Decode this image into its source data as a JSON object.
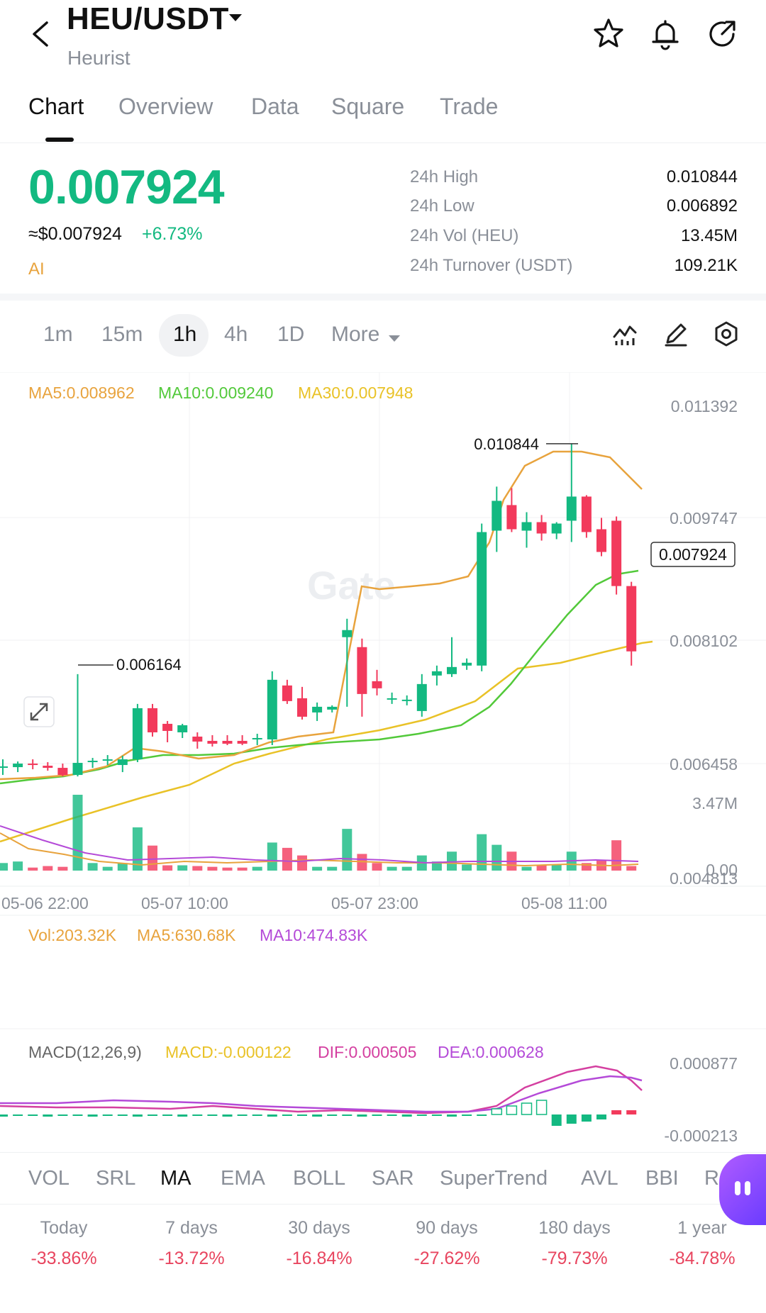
{
  "header": {
    "pair": "HEU/USDT",
    "name": "Heurist"
  },
  "tabs": [
    "Chart",
    "Overview",
    "Data",
    "Square",
    "Trade"
  ],
  "price": {
    "last": "0.007924",
    "usd": "≈$0.007924",
    "change": "+6.73%",
    "ai": "AI"
  },
  "stats": [
    {
      "label": "24h  High",
      "value": "0.010844"
    },
    {
      "label": "24h  Low",
      "value": "0.006892"
    },
    {
      "label": "24h  Vol (HEU)",
      "value": "13.45M"
    },
    {
      "label": "24h  Turnover (USDT)",
      "value": "109.21K"
    }
  ],
  "intervals": [
    "1m",
    "15m",
    "1h",
    "4h",
    "1D",
    "More"
  ],
  "ma_legend": {
    "ma5": "MA5:0.008962",
    "ma10": "MA10:0.009240",
    "ma30": "MA30:0.007948"
  },
  "vol_legend": {
    "vol": "Vol:203.32K",
    "ma5": "MA5:630.68K",
    "ma10": "MA10:474.83K"
  },
  "macd_legend": {
    "name": "MACD(12,26,9)",
    "macd": "MACD:-0.000122",
    "dif": "DIF:0.000505",
    "dea": "DEA:0.000628"
  },
  "indicators": [
    "VOL",
    "SRL",
    "MA",
    "EMA",
    "BOLL",
    "SAR",
    "SuperTrend",
    "AVL",
    "BBI",
    "Ra"
  ],
  "performance": [
    {
      "label": "Today",
      "value": "-33.86%"
    },
    {
      "label": "7 days",
      "value": "-13.72%"
    },
    {
      "label": "30 days",
      "value": "-16.84%"
    },
    {
      "label": "90 days",
      "value": "-27.62%"
    },
    {
      "label": "180 days",
      "value": "-79.73%"
    },
    {
      "label": "1 year",
      "value": "-84.78%"
    }
  ],
  "colors": {
    "up": "#13b981",
    "down": "#f23a5c",
    "ma5": "#e8a33d",
    "ma10": "#52c93a",
    "ma30": "#e9c227",
    "dif": "#d43fa0",
    "dea": "#b44ad8"
  },
  "watermark": "Gate",
  "chart_data": {
    "type": "candlestick",
    "price_axis_labels": [
      "0.011392",
      "0.009747",
      "0.008102",
      "0.006458",
      "0.004813"
    ],
    "time_axis_labels": [
      "05-06 22:00",
      "05-07 10:00",
      "05-07 23:00",
      "05-08 11:00"
    ],
    "high_marker": "0.010844",
    "low_marker": "0.006164",
    "last_marker": "0.007924",
    "volume_axis_labels": [
      "3.47M",
      "0.00"
    ],
    "macd_axis_labels": [
      "0.000877",
      "-0.000213"
    ],
    "candles": [
      {
        "o": 0.00628,
        "h": 0.0064,
        "l": 0.00618,
        "c": 0.0063
      },
      {
        "o": 0.00629,
        "h": 0.00637,
        "l": 0.00622,
        "c": 0.00634
      },
      {
        "o": 0.00634,
        "h": 0.0064,
        "l": 0.00626,
        "c": 0.00632
      },
      {
        "o": 0.00631,
        "h": 0.00636,
        "l": 0.00624,
        "c": 0.00628
      },
      {
        "o": 0.00628,
        "h": 0.00634,
        "l": 0.00616,
        "c": 0.00618
      },
      {
        "o": 0.00618,
        "h": 0.0076,
        "l": 0.00616,
        "c": 0.00635
      },
      {
        "o": 0.00636,
        "h": 0.00642,
        "l": 0.00628,
        "c": 0.00638
      },
      {
        "o": 0.00638,
        "h": 0.00646,
        "l": 0.00632,
        "c": 0.0064
      },
      {
        "o": 0.00632,
        "h": 0.00645,
        "l": 0.00622,
        "c": 0.0064
      },
      {
        "o": 0.0064,
        "h": 0.00718,
        "l": 0.00636,
        "c": 0.00712
      },
      {
        "o": 0.00712,
        "h": 0.00718,
        "l": 0.00672,
        "c": 0.00678
      },
      {
        "o": 0.0069,
        "h": 0.00694,
        "l": 0.00664,
        "c": 0.0068
      },
      {
        "o": 0.00678,
        "h": 0.0069,
        "l": 0.0067,
        "c": 0.00688
      },
      {
        "o": 0.00672,
        "h": 0.00678,
        "l": 0.00655,
        "c": 0.00665
      },
      {
        "o": 0.00666,
        "h": 0.00674,
        "l": 0.00658,
        "c": 0.00662
      },
      {
        "o": 0.00666,
        "h": 0.00674,
        "l": 0.0066,
        "c": 0.00662
      },
      {
        "o": 0.00666,
        "h": 0.00674,
        "l": 0.0066,
        "c": 0.00662
      },
      {
        "o": 0.00668,
        "h": 0.00676,
        "l": 0.0066,
        "c": 0.0067
      },
      {
        "o": 0.00668,
        "h": 0.00764,
        "l": 0.0066,
        "c": 0.00752
      },
      {
        "o": 0.00744,
        "h": 0.00752,
        "l": 0.00718,
        "c": 0.00722
      },
      {
        "o": 0.00726,
        "h": 0.00742,
        "l": 0.00696,
        "c": 0.007
      },
      {
        "o": 0.00706,
        "h": 0.0072,
        "l": 0.00694,
        "c": 0.00714
      },
      {
        "o": 0.0071,
        "h": 0.00716,
        "l": 0.00706,
        "c": 0.00714
      },
      {
        "o": 0.00812,
        "h": 0.00838,
        "l": 0.00714,
        "c": 0.00822
      },
      {
        "o": 0.00798,
        "h": 0.0081,
        "l": 0.007,
        "c": 0.00732
      },
      {
        "o": 0.0075,
        "h": 0.00766,
        "l": 0.0073,
        "c": 0.0074
      },
      {
        "o": 0.00725,
        "h": 0.00734,
        "l": 0.00718,
        "c": 0.00726
      },
      {
        "o": 0.00722,
        "h": 0.0073,
        "l": 0.00716,
        "c": 0.00724
      },
      {
        "o": 0.00708,
        "h": 0.0076,
        "l": 0.007,
        "c": 0.00746
      },
      {
        "o": 0.00758,
        "h": 0.00772,
        "l": 0.00744,
        "c": 0.00764
      },
      {
        "o": 0.0076,
        "h": 0.00812,
        "l": 0.00756,
        "c": 0.0077
      },
      {
        "o": 0.00772,
        "h": 0.00782,
        "l": 0.00766,
        "c": 0.00776
      },
      {
        "o": 0.00772,
        "h": 0.00972,
        "l": 0.00764,
        "c": 0.0096
      },
      {
        "o": 0.00962,
        "h": 0.01024,
        "l": 0.00932,
        "c": 0.01004
      },
      {
        "o": 0.00998,
        "h": 0.01022,
        "l": 0.0096,
        "c": 0.00964
      },
      {
        "o": 0.00962,
        "h": 0.00988,
        "l": 0.00938,
        "c": 0.00974
      },
      {
        "o": 0.00974,
        "h": 0.00984,
        "l": 0.00948,
        "c": 0.00958
      },
      {
        "o": 0.00958,
        "h": 0.00974,
        "l": 0.0095,
        "c": 0.00972
      },
      {
        "o": 0.00976,
        "h": 0.01084,
        "l": 0.00946,
        "c": 0.0101
      },
      {
        "o": 0.0101,
        "h": 0.01012,
        "l": 0.00952,
        "c": 0.0096
      },
      {
        "o": 0.00964,
        "h": 0.0098,
        "l": 0.00926,
        "c": 0.00932
      },
      {
        "o": 0.00976,
        "h": 0.00982,
        "l": 0.00872,
        "c": 0.00884
      },
      {
        "o": 0.00884,
        "h": 0.0089,
        "l": 0.00772,
        "c": 0.00792
      }
    ],
    "volume": [
      0.1,
      0.12,
      0.04,
      0.06,
      0.05,
      1.0,
      0.1,
      0.05,
      0.1,
      0.57,
      0.33,
      0.07,
      0.07,
      0.06,
      0.05,
      0.04,
      0.04,
      0.05,
      0.37,
      0.3,
      0.2,
      0.05,
      0.05,
      0.55,
      0.22,
      0.1,
      0.05,
      0.05,
      0.2,
      0.12,
      0.25,
      0.08,
      0.48,
      0.34,
      0.25,
      0.05,
      0.07,
      0.08,
      0.25,
      0.1,
      0.13,
      0.4,
      0.06
    ]
  }
}
